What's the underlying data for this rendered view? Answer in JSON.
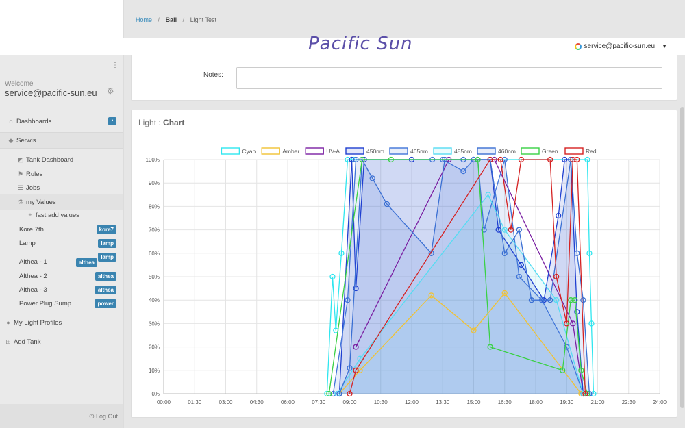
{
  "breadcrumb": {
    "home": "Home",
    "item1": "Bali",
    "item2": "Light Test"
  },
  "brand": "Pacific Sun",
  "user": {
    "email": "service@pacific-sun.eu",
    "welcome": "Welcome",
    "logout": "Log Out"
  },
  "notes": {
    "label": "Notes:",
    "value": ""
  },
  "sidebar": {
    "dashboards": "Dashboards",
    "serwis": "Serwis",
    "tank_dashboard": "Tank Dashboard",
    "rules": "Rules",
    "jobs": "Jobs",
    "my_values": "my Values",
    "fast_add_values": "fast add values",
    "devices": [
      {
        "label": "Kore 7th",
        "badge": "kore7"
      },
      {
        "label": "Lamp",
        "badge": "lamp"
      },
      {
        "label": "Althea - 1",
        "badge": "althea",
        "badge2": "lamp"
      },
      {
        "label": "Althea - 2",
        "badge": "althea"
      },
      {
        "label": "Althea - 3",
        "badge": "althea"
      },
      {
        "label": "Power Plug Sump",
        "badge": "power"
      }
    ],
    "light_profiles": "My Light Profiles",
    "add_tank": "Add Tank"
  },
  "chart_title": {
    "prefix": "Light :",
    "bold": "Chart"
  },
  "chart_data": {
    "type": "line",
    "x_ticks": [
      "00:00",
      "01:30",
      "03:00",
      "04:30",
      "06:00",
      "07:30",
      "09:00",
      "10:30",
      "12:00",
      "13:30",
      "15:00",
      "16:30",
      "18:00",
      "19:30",
      "21:00",
      "22:30",
      "24:00"
    ],
    "y_ticks": [
      "0%",
      "10%",
      "20%",
      "30%",
      "40%",
      "50%",
      "60%",
      "70%",
      "80%",
      "90%",
      "100%"
    ],
    "xlim": [
      0,
      24
    ],
    "ylim": [
      0,
      100
    ],
    "grid": true,
    "legend_position": "top",
    "series": [
      {
        "name": "Cyan",
        "color": "#2fe6ef",
        "fill": false,
        "points": [
          [
            7.9,
            0
          ],
          [
            8.17,
            50
          ],
          [
            8.33,
            27
          ],
          [
            8.6,
            60
          ],
          [
            8.9,
            100
          ],
          [
            9.2,
            100
          ],
          [
            20.5,
            100
          ],
          [
            20.6,
            60
          ],
          [
            20.7,
            30
          ],
          [
            20.8,
            0
          ]
        ]
      },
      {
        "name": "Amber",
        "color": "#f1c232",
        "fill": false,
        "points": [
          [
            8.5,
            0
          ],
          [
            9.5,
            10
          ],
          [
            12.95,
            42
          ],
          [
            15,
            27
          ],
          [
            16.5,
            43
          ],
          [
            20.2,
            0
          ]
        ]
      },
      {
        "name": "UV-A",
        "color": "#7a1fa2",
        "fill": false,
        "points": [
          [
            9.3,
            20
          ],
          [
            13.8,
            100
          ],
          [
            16,
            100
          ],
          [
            19.8,
            30
          ],
          [
            20.3,
            0
          ]
        ]
      },
      {
        "name": "450nm",
        "color": "#1f3fd0",
        "fill": true,
        "points": [
          [
            8.5,
            0
          ],
          [
            9.1,
            100
          ],
          [
            9.3,
            45
          ],
          [
            9.7,
            100
          ],
          [
            12,
            100
          ],
          [
            15,
            100
          ],
          [
            15.8,
            100
          ],
          [
            16.2,
            70
          ],
          [
            17.3,
            55
          ],
          [
            18.4,
            40
          ],
          [
            19.1,
            76
          ],
          [
            19.4,
            100
          ],
          [
            19.7,
            100
          ],
          [
            20.0,
            35
          ],
          [
            20.3,
            0
          ],
          [
            20.6,
            0
          ]
        ]
      },
      {
        "name": "465nm",
        "color": "#3f74d8",
        "fill": true,
        "points": [
          [
            8.2,
            0
          ],
          [
            8.9,
            40
          ],
          [
            9.3,
            100
          ],
          [
            13,
            100
          ],
          [
            13.5,
            100
          ],
          [
            14.5,
            95
          ],
          [
            15,
            100
          ],
          [
            15.2,
            100
          ],
          [
            15.5,
            70
          ],
          [
            16.5,
            100
          ],
          [
            17.2,
            50
          ],
          [
            18.3,
            40
          ],
          [
            19.5,
            20
          ],
          [
            20.3,
            0
          ]
        ]
      },
      {
        "name": "485nm",
        "color": "#55dcf2",
        "fill": true,
        "points": [
          [
            8.4,
            0
          ],
          [
            9.5,
            15
          ],
          [
            15.7,
            85
          ],
          [
            16.5,
            70
          ],
          [
            19,
            40
          ],
          [
            20.3,
            0
          ]
        ]
      },
      {
        "name": "460nm",
        "color": "#3a6fd3",
        "fill": true,
        "points": [
          [
            8.5,
            0
          ],
          [
            9.0,
            11
          ],
          [
            9.6,
            100
          ],
          [
            10.1,
            92
          ],
          [
            10.8,
            81
          ],
          [
            12.95,
            60
          ],
          [
            13.6,
            100
          ],
          [
            14.5,
            100
          ],
          [
            15.8,
            100
          ],
          [
            16.5,
            60
          ],
          [
            17.2,
            70
          ],
          [
            17.8,
            40
          ],
          [
            18.7,
            40
          ],
          [
            19.7,
            100
          ],
          [
            20.0,
            60
          ],
          [
            20.3,
            40
          ],
          [
            20.6,
            0
          ]
        ]
      },
      {
        "name": "Green",
        "color": "#39d144",
        "fill": false,
        "points": [
          [
            8.0,
            0
          ],
          [
            9.6,
            100
          ],
          [
            11.0,
            100
          ],
          [
            15.2,
            100
          ],
          [
            15.8,
            20
          ],
          [
            19.3,
            10
          ],
          [
            19.7,
            40
          ],
          [
            19.9,
            40
          ],
          [
            20.2,
            10
          ],
          [
            20.5,
            0
          ]
        ]
      },
      {
        "name": "Red",
        "color": "#d52121",
        "fill": false,
        "points": [
          [
            9.0,
            0
          ],
          [
            9.3,
            10
          ],
          [
            15.8,
            100
          ],
          [
            16.3,
            100
          ],
          [
            16.8,
            70
          ],
          [
            17.3,
            100
          ],
          [
            18.7,
            100
          ],
          [
            19.0,
            50
          ],
          [
            19.5,
            30
          ],
          [
            19.8,
            100
          ],
          [
            20.0,
            100
          ],
          [
            20.4,
            0
          ]
        ]
      }
    ]
  }
}
